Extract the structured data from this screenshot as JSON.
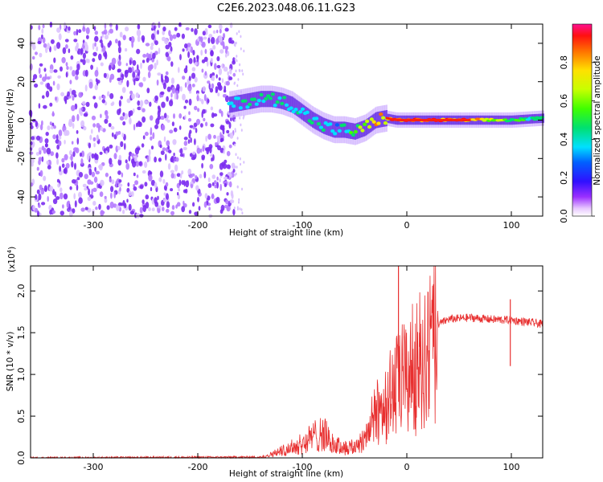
{
  "title": "C2E6.2023.048.06.11.G23",
  "chart_data": [
    {
      "type": "heatmap",
      "name": "spectrogram",
      "xlabel": "Height of straight line (km)",
      "ylabel": "Frequency (Hz)",
      "xlim": [
        -360,
        130
      ],
      "ylim": [
        -50,
        50
      ],
      "xticks": [
        -300,
        -200,
        -100,
        0,
        100
      ],
      "yticks": [
        -40,
        -20,
        0,
        20,
        40
      ],
      "noise_region_x": [
        -360,
        -165
      ],
      "signal_track": {
        "x": [
          -170,
          -160,
          -150,
          -140,
          -130,
          -120,
          -110,
          -100,
          -90,
          -80,
          -70,
          -60,
          -50,
          -40,
          -30,
          -20,
          -10,
          0,
          20,
          40,
          60,
          80,
          100,
          130
        ],
        "freq": [
          8,
          9,
          10,
          11,
          11,
          10,
          8,
          4,
          0,
          -3,
          -5,
          -5,
          -6,
          -4,
          0,
          1,
          0,
          0,
          0,
          0,
          0,
          0,
          0,
          1
        ],
        "amplitude": [
          0.4,
          0.45,
          0.5,
          0.5,
          0.5,
          0.5,
          0.45,
          0.45,
          0.5,
          0.45,
          0.4,
          0.45,
          0.55,
          0.7,
          0.8,
          0.85,
          0.9,
          0.95,
          0.95,
          0.95,
          0.9,
          0.75,
          0.6,
          0.5
        ]
      },
      "colorbar": {
        "label": "Normalized spectral amplitude",
        "range": [
          0,
          1
        ],
        "ticks": [
          "0.0",
          "0.2",
          "0.4",
          "0.6",
          "0.8"
        ]
      }
    },
    {
      "type": "line",
      "name": "snr",
      "xlabel": "Height of straight line (km)",
      "ylabel": "SNR (10 * v/v)",
      "y_scale_label": "(x10",
      "y_scale_exp": "4",
      "y_scale_close": ")",
      "xlim": [
        -360,
        130
      ],
      "ylim": [
        0,
        2.3
      ],
      "xticks": [
        -300,
        -200,
        -100,
        0,
        100
      ],
      "yticks": [
        "0.0",
        "0.5",
        "1.0",
        "1.5",
        "2.0"
      ],
      "color": "#e83030",
      "series": {
        "x": [
          -360,
          -140,
          -130,
          -120,
          -110,
          -100,
          -90,
          -80,
          -70,
          -60,
          -50,
          -40,
          -30,
          -20,
          -10,
          0,
          10,
          20,
          30,
          40,
          60,
          80,
          100,
          120,
          130
        ],
        "y": [
          0.0,
          0.01,
          0.05,
          0.1,
          0.15,
          0.2,
          0.3,
          0.35,
          0.18,
          0.15,
          0.15,
          0.3,
          0.6,
          0.8,
          1.0,
          1.15,
          1.3,
          1.45,
          1.6,
          1.66,
          1.68,
          1.66,
          1.65,
          1.62,
          1.6
        ]
      },
      "spikes": [
        {
          "x": -8,
          "y": 2.3
        },
        {
          "x": 12,
          "y": 1.5
        },
        {
          "x": 99,
          "y": 1.9
        },
        {
          "x": 99,
          "y": 1.1
        }
      ]
    }
  ],
  "colors": {
    "signal_red": "#e83030",
    "noise_purple": "#7b2cf0"
  }
}
